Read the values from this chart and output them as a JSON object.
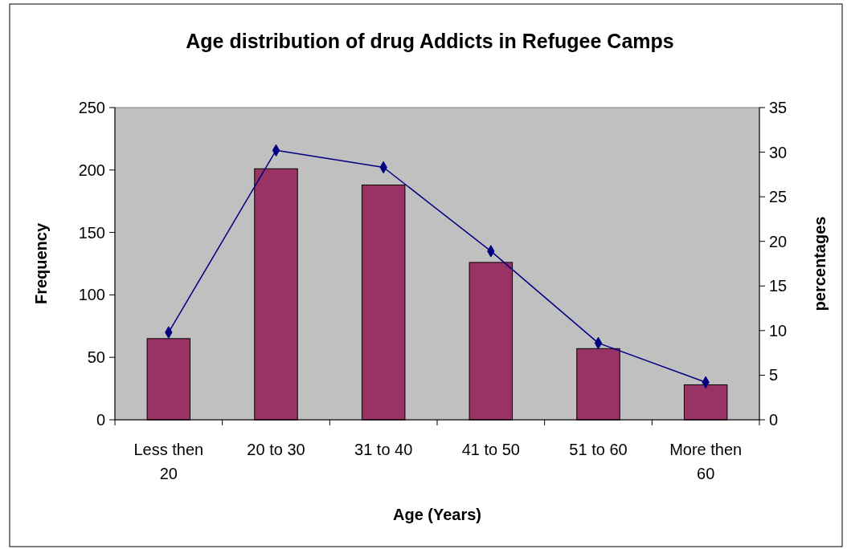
{
  "chart_data": {
    "type": "bar",
    "title": "Age distribution of drug Addicts in Refugee Camps",
    "xlabel": "Age (Years)",
    "ylabel": "Frequency",
    "y2label": "percentages",
    "categories": [
      "Less then 20",
      "20 to 30",
      "31 to 40",
      "41 to 50",
      "51 to 60",
      "More then 60"
    ],
    "series": [
      {
        "color": "#993366",
        "values": [
          65,
          201,
          188,
          126,
          57,
          28
        ]
      },
      {
        "type": "line",
        "axis": "y2",
        "color": "#000080",
        "marker": "diamond",
        "values": [
          9.8,
          30.2,
          28.3,
          18.9,
          8.6,
          4.2
        ]
      }
    ],
    "ylim": [
      0,
      250
    ],
    "yticks": [
      0,
      50,
      100,
      150,
      200,
      250
    ],
    "y2lim": [
      0,
      35
    ],
    "y2ticks": [
      0,
      5,
      10,
      15,
      20,
      25,
      30,
      35
    ],
    "grid": false
  }
}
